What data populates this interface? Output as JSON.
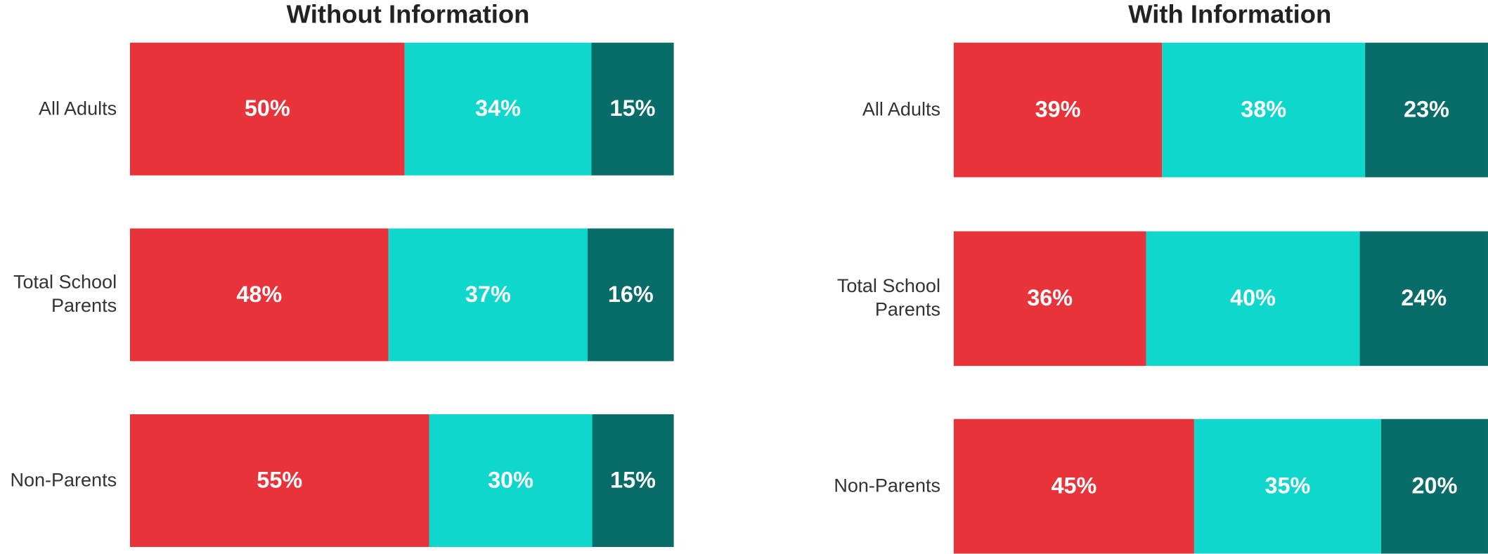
{
  "chart_data": [
    {
      "type": "bar",
      "orientation": "horizontal",
      "stacked": true,
      "title": "Without Information",
      "categories": [
        "All Adults",
        "Total School Parents",
        "Non-Parents"
      ],
      "series": [
        {
          "color": "#e8333a",
          "values": [
            50,
            48,
            55
          ],
          "value_labels": [
            "50%",
            "48%",
            "55%"
          ]
        },
        {
          "color": "#10d7cc",
          "values": [
            34,
            37,
            30
          ],
          "value_labels": [
            "34%",
            "37%",
            "30%"
          ]
        },
        {
          "color": "#086c68",
          "values": [
            15,
            16,
            15
          ],
          "value_labels": [
            "15%",
            "16%",
            "15%"
          ]
        }
      ]
    },
    {
      "type": "bar",
      "orientation": "horizontal",
      "stacked": true,
      "title": "With Information",
      "categories": [
        "All Adults",
        "Total School Parents",
        "Non-Parents"
      ],
      "series": [
        {
          "color": "#e8333a",
          "values": [
            39,
            36,
            45
          ],
          "value_labels": [
            "39%",
            "36%",
            "45%"
          ]
        },
        {
          "color": "#10d7cc",
          "values": [
            38,
            40,
            35
          ],
          "value_labels": [
            "38%",
            "40%",
            "35%"
          ]
        },
        {
          "color": "#086c68",
          "values": [
            23,
            24,
            20
          ],
          "value_labels": [
            "23%",
            "24%",
            "20%"
          ]
        }
      ]
    }
  ]
}
